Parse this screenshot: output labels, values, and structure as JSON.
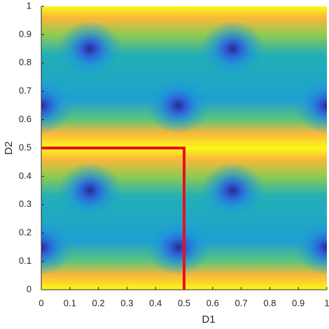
{
  "chart_data": {
    "type": "line",
    "xlabel": "D1",
    "ylabel": "D2",
    "xlim": [
      0,
      1
    ],
    "ylim": [
      0,
      1
    ],
    "xticks": [
      0,
      0.1,
      0.2,
      0.3,
      0.4,
      0.5,
      0.6,
      0.7,
      0.8,
      0.9,
      1
    ],
    "yticks": [
      0,
      0.1,
      0.2,
      0.3,
      0.4,
      0.5,
      0.6,
      0.7,
      0.8,
      0.9,
      1
    ],
    "series": [
      {
        "color": "#e8101a",
        "x": [
          0,
          0.5,
          0.5
        ],
        "values": [
          0.5,
          0.5,
          0
        ]
      }
    ],
    "minima": {
      "x": [
        0.17,
        0.67,
        0,
        0.48,
        1,
        0.17,
        0.67,
        0,
        0.48,
        1
      ],
      "y": [
        0.85,
        0.85,
        0.65,
        0.65,
        0.65,
        0.35,
        0.35,
        0.15,
        0.15,
        0.15
      ]
    }
  }
}
